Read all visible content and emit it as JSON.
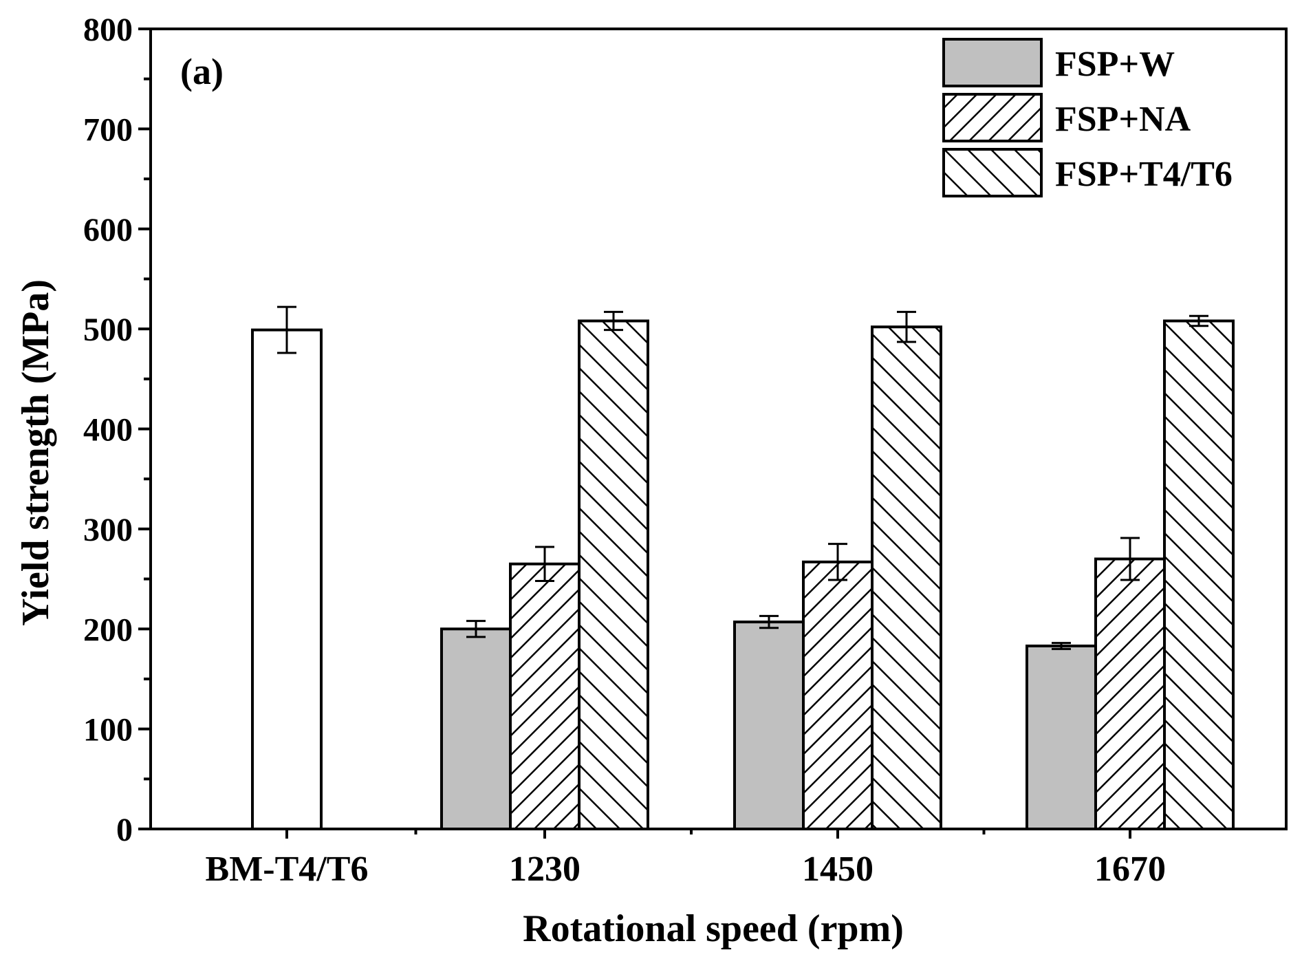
{
  "chart_data": {
    "type": "bar",
    "panel_label": "(a)",
    "title": "",
    "xlabel": "Rotational speed (rpm)",
    "ylabel": "Yield strength (MPa)",
    "ylim": [
      0,
      800
    ],
    "yticks": [
      0,
      100,
      200,
      300,
      400,
      500,
      600,
      700,
      800
    ],
    "ytick_labels": [
      "0",
      "100",
      "200",
      "300",
      "400",
      "500",
      "600",
      "700",
      "800"
    ],
    "categories": [
      "BM-T4/T6",
      "1230",
      "1450",
      "1670"
    ],
    "base_metal": {
      "name": "BM-T4/T6",
      "value": 499,
      "error": 23
    },
    "series": [
      {
        "name": "FSP+W",
        "style": "solid-gray",
        "values": [
          null,
          200,
          207,
          183
        ],
        "errors": [
          null,
          8,
          6,
          3
        ]
      },
      {
        "name": "FSP+NA",
        "style": "hatch-forward",
        "values": [
          null,
          265,
          267,
          270
        ],
        "errors": [
          null,
          17,
          18,
          21
        ]
      },
      {
        "name": "FSP+T4/T6",
        "style": "hatch-back",
        "values": [
          null,
          508,
          502,
          508
        ],
        "errors": [
          null,
          9,
          15,
          5
        ]
      }
    ],
    "legend": {
      "position": "top-right",
      "entries": [
        "FSP+W",
        "FSP+NA",
        "FSP+T4/T6"
      ]
    },
    "colors": {
      "bar_gray": "#c0c0c0",
      "outline": "#000000",
      "background": "#ffffff"
    }
  }
}
